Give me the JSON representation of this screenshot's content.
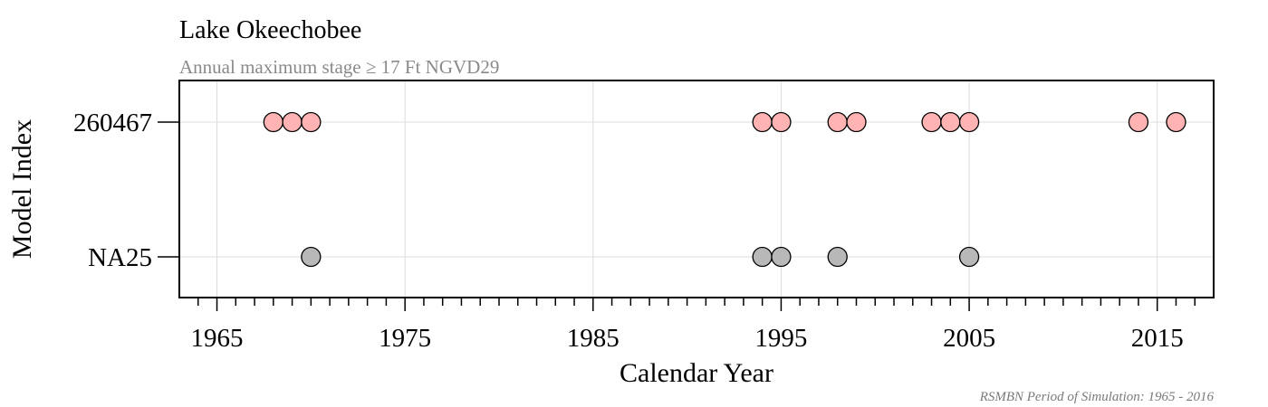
{
  "chart_data": {
    "type": "scatter",
    "title": "Lake Okeechobee",
    "subtitle": "Annual maximum stage ≥ 17 Ft NGVD29",
    "xlabel": "Calendar Year",
    "ylabel": "Model Index",
    "caption": "RSMBN Period of Simulation: 1965 - 2016",
    "xlim": [
      1963,
      2018
    ],
    "x_ticks": [
      1965,
      1975,
      1985,
      1995,
      2005,
      2015
    ],
    "x_tick_labels": [
      "1965",
      "1975",
      "1985",
      "1995",
      "2005",
      "2015"
    ],
    "minor_tick_step": 1,
    "categories": [
      "260467",
      "NA25"
    ],
    "grid": true,
    "series": [
      {
        "category": "260467",
        "color": "#ffb3b3",
        "values": [
          1968,
          1969,
          1970,
          1994,
          1995,
          1998,
          1999,
          2003,
          2004,
          2005,
          2014,
          2016
        ]
      },
      {
        "category": "NA25",
        "color": "#b8b8b8",
        "values": [
          1970,
          1994,
          1995,
          1998,
          2005
        ]
      }
    ]
  }
}
